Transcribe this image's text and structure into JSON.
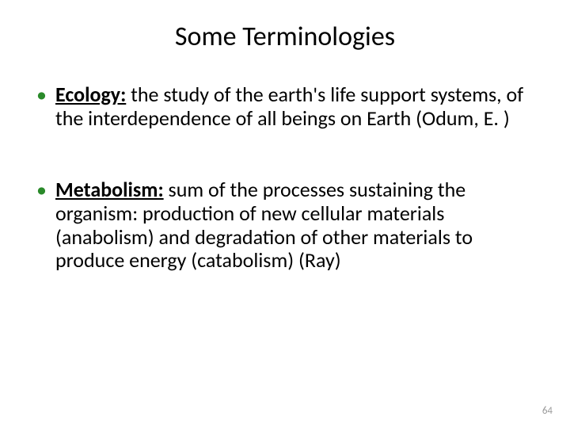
{
  "title": "Some Terminologies",
  "bullets": [
    {
      "term": "Ecology:",
      "definition": " the study of the earth's life support systems, of the interdependence of all beings on Earth (Odum, E. )"
    },
    {
      "term": "Metabolism:",
      "definition": " sum of the processes sustaining the organism: production of new cellular materials (anabolism) and degradation of other materials to produce energy (catabolism) (Ray)"
    }
  ],
  "page_number": "64",
  "colors": {
    "bullet_marker": "#2a8a2a",
    "text": "#000000",
    "page_number": "#9a9a9a",
    "background": "#ffffff"
  },
  "typography": {
    "title_fontsize": 34,
    "body_fontsize": 26,
    "pagenum_fontsize": 13,
    "font_family": "Calibri"
  }
}
